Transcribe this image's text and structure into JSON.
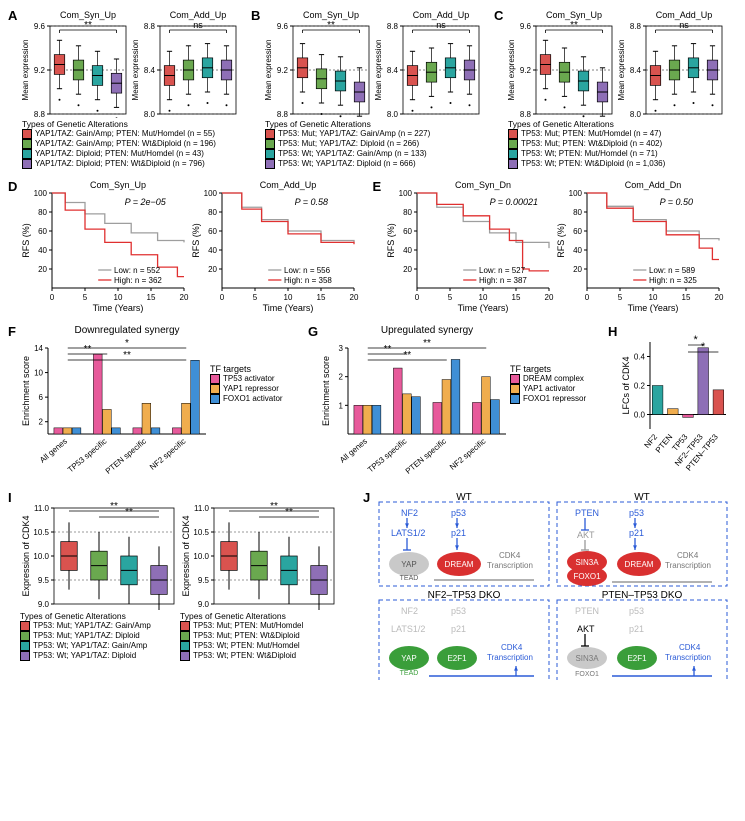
{
  "colors": {
    "red": "#d9534f",
    "green": "#6aa84f",
    "teal": "#2aa5a0",
    "purple": "#8e6fb6",
    "pink": "#e75a9b",
    "orange": "#f0ad4e",
    "blue": "#3f8fd6",
    "grey": "#b0b0b0",
    "kmGrey": "#9e9e9e",
    "kmRed": "#e03030"
  },
  "top_panels": [
    {
      "label": "A",
      "legend_title": "Types of Genetic Alterations",
      "legend": [
        "YAP1/TAZ: Gain/Amp; PTEN: Mut/Homdel (n = 55)",
        "YAP1/TAZ: Gain/Amp; PTEN: Wt&Diploid (n = 196)",
        "YAP1/TAZ: Diploid; PTEN: Mut/Homdel (n = 43)",
        "YAP1/TAZ: Diploid; PTEN: Wt&Diploid (n = 796)"
      ],
      "charts": [
        {
          "title": "Com_Syn_Up",
          "ylim": [
            8.8,
            9.6
          ],
          "ticks": [
            8.8,
            9.2,
            9.6
          ],
          "medians": [
            9.25,
            9.2,
            9.15,
            9.08
          ],
          "sig": "**"
        },
        {
          "title": "Com_Add_Up",
          "ylim": [
            8.0,
            8.8
          ],
          "ticks": [
            8.0,
            8.4,
            8.8
          ],
          "medians": [
            8.35,
            8.4,
            8.42,
            8.4
          ],
          "sig": "ns"
        }
      ]
    },
    {
      "label": "B",
      "legend_title": "Types of Genetic Alterations",
      "legend": [
        "TP53: Mut; YAP1/TAZ: Gain/Amp (n = 227)",
        "TP53: Mut; YAP1/TAZ: Diploid (n = 266)",
        "TP53: Wt; YAP1/TAZ: Gain/Amp (n = 133)",
        "TP53: Wt; YAP1/TAZ: Diploid (n = 666)"
      ],
      "charts": [
        {
          "title": "Com_Syn_Up",
          "ylim": [
            8.8,
            9.6
          ],
          "ticks": [
            8.8,
            9.2,
            9.6
          ],
          "medians": [
            9.22,
            9.12,
            9.1,
            9.0
          ],
          "sig": "**"
        },
        {
          "title": "Com_Add_Up",
          "ylim": [
            8.0,
            8.8
          ],
          "ticks": [
            8.0,
            8.4,
            8.8
          ],
          "medians": [
            8.35,
            8.38,
            8.42,
            8.4
          ],
          "sig": "ns"
        }
      ]
    },
    {
      "label": "C",
      "legend_title": "Types of Genetic Alterations",
      "legend": [
        "TP53: Mut; PTEN: Mut/Homdel (n = 47)",
        "TP53: Mut; PTEN: Wt&Diploid (n = 402)",
        "TP53: Wt; PTEN: Mut/Homdel (n = 71)",
        "TP53: Wt; PTEN: Wt&Diploid (n = 1,036)"
      ],
      "charts": [
        {
          "title": "Com_Syn_Up",
          "ylim": [
            8.8,
            9.6
          ],
          "ticks": [
            8.8,
            9.2,
            9.6
          ],
          "medians": [
            9.25,
            9.18,
            9.1,
            9.0
          ],
          "sig": "**"
        },
        {
          "title": "Com_Add_Up",
          "ylim": [
            8.0,
            8.8
          ],
          "ticks": [
            8.0,
            8.4,
            8.8
          ],
          "medians": [
            8.35,
            8.4,
            8.42,
            8.4
          ],
          "sig": "ns"
        }
      ]
    }
  ],
  "km_panels": [
    {
      "label": "D",
      "charts": [
        {
          "title": "Com_Syn_Up",
          "p": "P = 2e−05",
          "low": "Low: n = 552",
          "high": "High: n = 362"
        },
        {
          "title": "Com_Add_Up",
          "p": "P = 0.58",
          "low": "Low: n = 556",
          "high": "High: n = 358"
        }
      ]
    },
    {
      "label": "E",
      "charts": [
        {
          "title": "Com_Syn_Dn",
          "p": "P = 0.00021",
          "low": "Low: n = 527",
          "high": "High: n = 387"
        },
        {
          "title": "Com_Add_Dn",
          "p": "P = 0.50",
          "low": "Low: n = 589",
          "high": "High: n = 325"
        }
      ]
    }
  ],
  "km_axes": {
    "ylabel": "RFS (%)",
    "xlabel": "Time (Years)",
    "xticks": [
      0,
      5,
      10,
      15,
      20
    ],
    "yticks": [
      20,
      40,
      60,
      80,
      100
    ]
  },
  "bar_panels": {
    "F": {
      "title": "Downregulated synergy",
      "ylabel": "Enrichment score",
      "ylim": [
        0,
        14
      ],
      "yticks": [
        2,
        6,
        10,
        14
      ],
      "legend_title": "TF targets",
      "legend": [
        "TP53 activator",
        "YAP1 repressor",
        "FOXO1 activator"
      ],
      "cats": [
        "All genes",
        "TP53 specific",
        "PTEN specific",
        "NF2 specific"
      ],
      "values": [
        [
          1,
          1,
          1
        ],
        [
          13,
          4,
          1
        ],
        [
          1,
          5,
          1
        ],
        [
          1,
          5,
          12
        ]
      ],
      "sig": [
        [
          "**",
          "TP53 specific"
        ],
        [
          "**",
          "NF2 specific"
        ],
        [
          "*",
          "overall"
        ]
      ]
    },
    "G": {
      "title": "Upregulated synergy",
      "ylabel": "Enrichment score",
      "ylim": [
        0,
        3
      ],
      "yticks": [
        1,
        2,
        3
      ],
      "legend_title": "TF targets",
      "legend": [
        "DREAM complex",
        "YAP1 activator",
        "FOXO1 repressor"
      ],
      "cats": [
        "All genes",
        "TP53 specific",
        "PTEN specific",
        "NF2 specific"
      ],
      "values": [
        [
          1,
          1,
          1
        ],
        [
          2.3,
          1.4,
          1.3
        ],
        [
          1.1,
          1.9,
          2.6
        ],
        [
          1.1,
          2.0,
          1.2
        ]
      ],
      "sig": [
        [
          "**",
          "TP53"
        ],
        [
          "**",
          "PTEN"
        ],
        [
          "**",
          "NF2"
        ]
      ]
    },
    "H": {
      "ylabel": "LFCs of CDK4",
      "cats": [
        "NF2",
        "PTEN",
        "TP53",
        "NF2–TP53",
        "PTEN–TP53"
      ],
      "values": [
        0.2,
        0.04,
        -0.02,
        0.46,
        0.17
      ],
      "colors": [
        "#2aa5a0",
        "#f0ad4e",
        "#e75a9b",
        "#8e6fb6",
        "#d9534f"
      ],
      "sig": "*"
    }
  },
  "I_panel": {
    "legend_title": "Types of Genetic Alterations",
    "left_legend": [
      "TP53: Mut; YAP1/TAZ: Gain/Amp",
      "TP53: Mut; YAP1/TAZ: Diploid",
      "TP53: Wt; YAP1/TAZ: Gain/Amp",
      "TP53: Wt; YAP1/TAZ: Diploid"
    ],
    "right_legend": [
      "TP53: Mut; PTEN: Mut/Homdel",
      "TP53: Mut; PTEN: Wt&Diploid",
      "TP53: Wt; PTEN: Mut/Homdel",
      "TP53: Wt; PTEN: Wt&Diploid"
    ],
    "ylabel": "Expression of CDK4",
    "ylim": [
      9.0,
      11.0
    ],
    "yticks": [
      9.0,
      9.5,
      10.0,
      10.5,
      11.0
    ],
    "left_medians": [
      10.0,
      9.8,
      9.7,
      9.5
    ],
    "right_medians": [
      10.0,
      9.8,
      9.7,
      9.5
    ]
  },
  "J_panel": {
    "tl_title": "WT",
    "tr_title": "WT",
    "bl_title": "NF2–TP53 DKO",
    "br_title": "PTEN–TP53 DKO",
    "cdk4": "CDK4 Transcription"
  }
}
